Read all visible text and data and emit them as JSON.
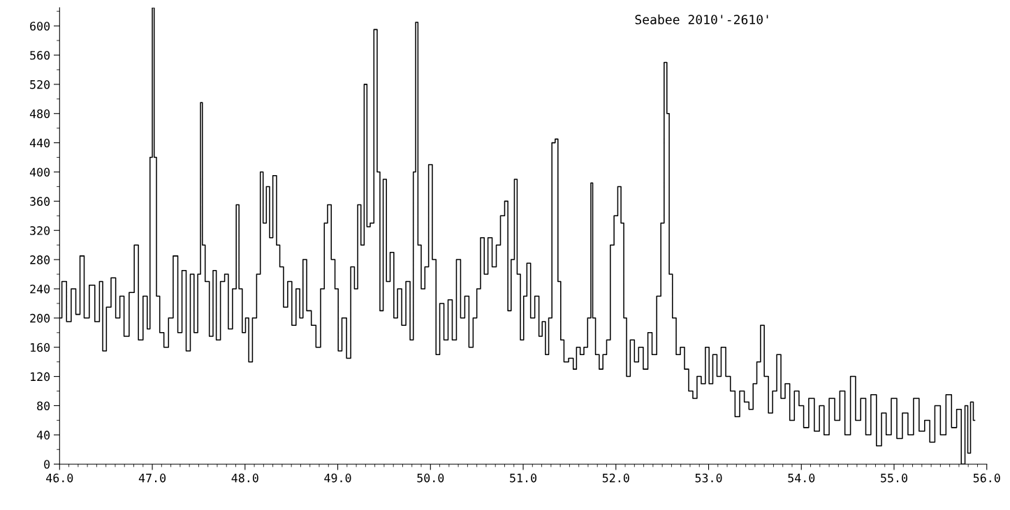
{
  "chart_data": {
    "type": "step",
    "title": "Seabee 2010'-2610'",
    "color": "#000000",
    "grid": false,
    "legend": false,
    "marker": "none",
    "line_style": "solid",
    "xlim": [
      46.0,
      56.0
    ],
    "ylim": [
      0,
      625
    ],
    "xticks": [
      {
        "value": 46,
        "label": "46.0"
      },
      {
        "value": 47,
        "label": "47.0"
      },
      {
        "value": 48,
        "label": "48.0"
      },
      {
        "value": 49,
        "label": "49.0"
      },
      {
        "value": 50,
        "label": "50.0"
      },
      {
        "value": 51,
        "label": "51.0"
      },
      {
        "value": 52,
        "label": "52.0"
      },
      {
        "value": 53,
        "label": "53.0"
      },
      {
        "value": 54,
        "label": "54.0"
      },
      {
        "value": 55,
        "label": "55.0"
      },
      {
        "value": 56,
        "label": "56.0"
      }
    ],
    "yticks": [
      0,
      40,
      80,
      120,
      160,
      200,
      240,
      280,
      320,
      360,
      400,
      440,
      480,
      520,
      560,
      600
    ],
    "x": [
      46.0,
      46.05,
      46.1,
      46.15,
      46.2,
      46.24,
      46.29,
      46.35,
      46.41,
      46.45,
      46.48,
      46.53,
      46.58,
      46.63,
      46.67,
      46.72,
      46.78,
      46.83,
      46.87,
      46.93,
      46.96,
      46.99,
      47.01,
      47.03,
      47.06,
      47.1,
      47.15,
      47.2,
      47.25,
      47.3,
      47.34,
      47.39,
      47.43,
      47.47,
      47.51,
      47.53,
      47.55,
      47.59,
      47.64,
      47.67,
      47.71,
      47.76,
      47.8,
      47.84,
      47.89,
      47.92,
      47.95,
      47.99,
      48.02,
      48.06,
      48.1,
      48.15,
      48.18,
      48.21,
      48.25,
      48.28,
      48.32,
      48.36,
      48.39,
      48.44,
      48.48,
      48.53,
      48.57,
      48.61,
      48.64,
      48.69,
      48.74,
      48.79,
      48.84,
      48.87,
      48.91,
      48.95,
      48.99,
      49.02,
      49.07,
      49.12,
      49.16,
      49.2,
      49.23,
      49.27,
      49.3,
      49.33,
      49.37,
      49.41,
      49.44,
      49.47,
      49.51,
      49.54,
      49.59,
      49.62,
      49.67,
      49.71,
      49.76,
      49.8,
      49.83,
      49.85,
      49.88,
      49.92,
      49.96,
      50.0,
      50.04,
      50.08,
      50.12,
      50.17,
      50.21,
      50.26,
      50.3,
      50.35,
      50.39,
      50.44,
      50.48,
      50.52,
      50.56,
      50.6,
      50.64,
      50.69,
      50.73,
      50.78,
      50.82,
      50.85,
      50.89,
      50.92,
      50.95,
      50.99,
      51.02,
      51.06,
      51.1,
      51.15,
      51.19,
      51.22,
      51.26,
      51.29,
      51.33,
      51.36,
      51.39,
      51.42,
      51.46,
      51.52,
      51.56,
      51.59,
      51.64,
      51.67,
      51.72,
      51.74,
      51.76,
      51.8,
      51.84,
      51.88,
      51.92,
      51.96,
      52.0,
      52.04,
      52.07,
      52.1,
      52.13,
      52.18,
      52.22,
      52.27,
      52.32,
      52.37,
      52.41,
      52.47,
      52.5,
      52.54,
      52.56,
      52.59,
      52.63,
      52.67,
      52.72,
      52.76,
      52.81,
      52.85,
      52.9,
      52.94,
      52.99,
      53.02,
      53.07,
      53.11,
      53.16,
      53.21,
      53.26,
      53.31,
      53.36,
      53.41,
      53.46,
      53.5,
      53.54,
      53.58,
      53.62,
      53.67,
      53.71,
      53.76,
      53.8,
      53.85,
      53.9,
      53.95,
      54.0,
      54.05,
      54.11,
      54.17,
      54.22,
      54.27,
      54.33,
      54.39,
      54.44,
      54.5,
      54.56,
      54.61,
      54.67,
      54.72,
      54.78,
      54.84,
      54.89,
      54.94,
      55.0,
      55.06,
      55.12,
      55.18,
      55.24,
      55.3,
      55.36,
      55.41,
      55.47,
      55.53,
      55.59,
      55.65,
      55.7,
      55.75,
      55.78,
      55.81,
      55.84,
      55.87
    ],
    "values": [
      200,
      250,
      195,
      240,
      205,
      285,
      200,
      245,
      195,
      250,
      155,
      215,
      255,
      200,
      230,
      175,
      235,
      300,
      170,
      230,
      185,
      420,
      625,
      420,
      230,
      180,
      160,
      200,
      285,
      180,
      265,
      155,
      260,
      180,
      260,
      495,
      300,
      250,
      175,
      265,
      170,
      250,
      260,
      185,
      240,
      355,
      240,
      180,
      200,
      140,
      200,
      260,
      400,
      330,
      380,
      310,
      395,
      300,
      270,
      215,
      250,
      190,
      240,
      200,
      280,
      210,
      190,
      160,
      240,
      330,
      355,
      280,
      240,
      155,
      200,
      145,
      270,
      240,
      355,
      300,
      520,
      325,
      330,
      595,
      400,
      210,
      390,
      250,
      290,
      200,
      240,
      190,
      250,
      170,
      400,
      605,
      300,
      240,
      270,
      410,
      280,
      150,
      220,
      170,
      225,
      170,
      280,
      200,
      230,
      160,
      200,
      240,
      310,
      260,
      310,
      270,
      300,
      340,
      360,
      210,
      280,
      390,
      260,
      170,
      230,
      275,
      200,
      230,
      175,
      195,
      150,
      200,
      440,
      445,
      250,
      170,
      140,
      145,
      130,
      160,
      150,
      160,
      200,
      385,
      200,
      150,
      130,
      150,
      170,
      300,
      340,
      380,
      330,
      200,
      120,
      170,
      140,
      160,
      130,
      180,
      150,
      230,
      330,
      550,
      480,
      260,
      200,
      150,
      160,
      130,
      100,
      90,
      120,
      110,
      160,
      110,
      150,
      120,
      160,
      120,
      100,
      65,
      100,
      85,
      75,
      110,
      140,
      190,
      120,
      70,
      100,
      150,
      90,
      110,
      60,
      100,
      80,
      50,
      90,
      45,
      80,
      40,
      90,
      60,
      100,
      40,
      120,
      60,
      90,
      40,
      95,
      25,
      70,
      40,
      90,
      35,
      70,
      40,
      90,
      45,
      60,
      30,
      80,
      40,
      95,
      50,
      75,
      0,
      80,
      15,
      85,
      60
    ]
  }
}
